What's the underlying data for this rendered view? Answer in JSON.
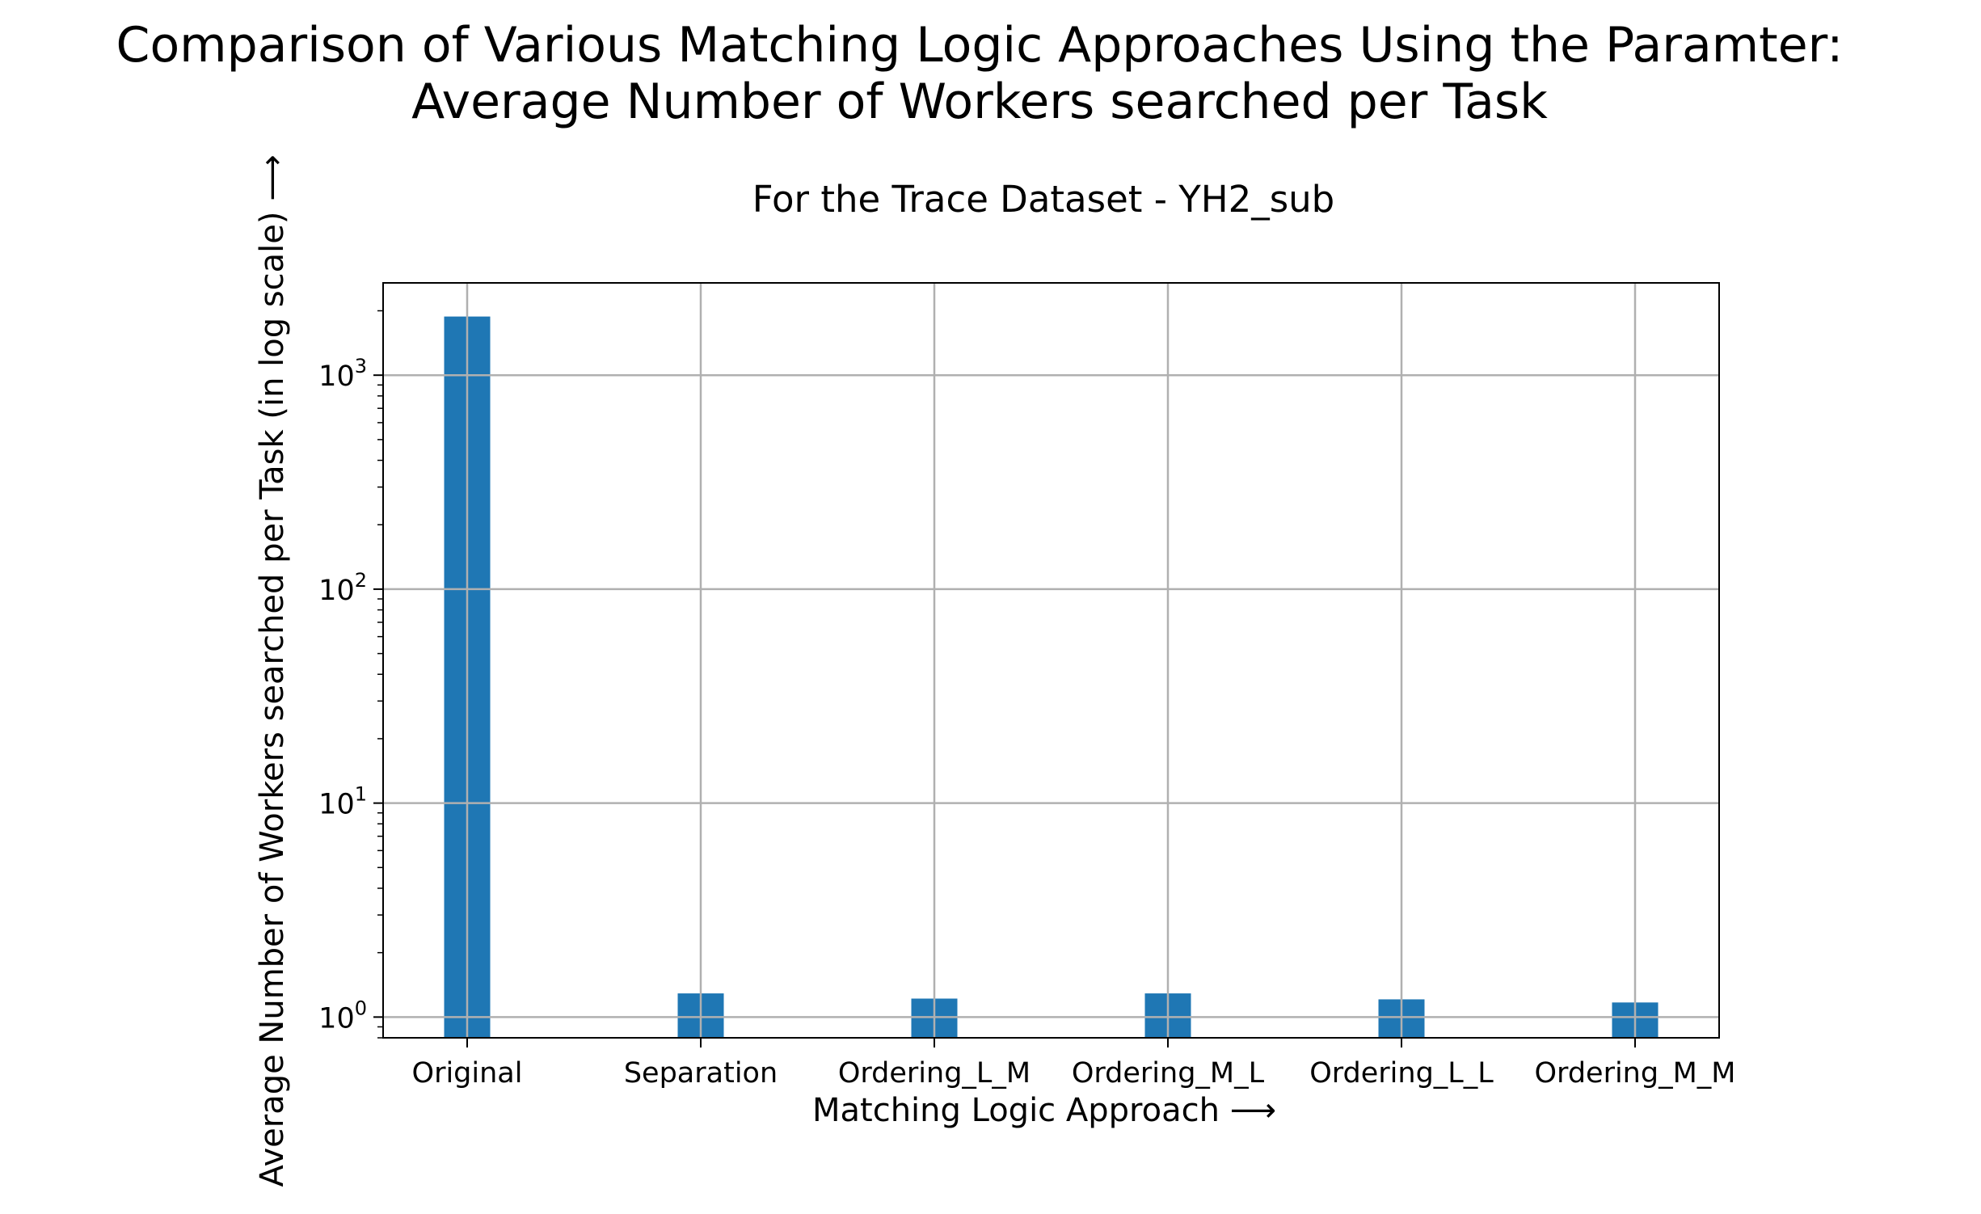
{
  "chart_data": {
    "type": "bar",
    "title_lines": [
      "Comparison of Various Matching Logic Approaches Using the Paramter:",
      "Average Number of Workers searched per Task"
    ],
    "subtitle": "For the Trace Dataset - YH2_sub",
    "xlabel": "Matching Logic Approach ⟶",
    "ylabel": "Average Number of Workers searched per Task (in log scale) ⟶",
    "categories": [
      "Original",
      "Separation",
      "Ordering_L_M",
      "Ordering_M_L",
      "Ordering_L_L",
      "Ordering_M_M"
    ],
    "values": [
      1880,
      1.29,
      1.22,
      1.29,
      1.21,
      1.17
    ],
    "y_scale": "log",
    "ylim": [
      0.8,
      2700
    ],
    "y_ticks": [
      {
        "value": 1,
        "base": "10",
        "exp": "0"
      },
      {
        "value": 10,
        "base": "10",
        "exp": "1"
      },
      {
        "value": 100,
        "base": "10",
        "exp": "2"
      },
      {
        "value": 1000,
        "base": "10",
        "exp": "3"
      }
    ],
    "grid": true,
    "bar_color": "#1f77b4",
    "grid_color": "#b0b0b0"
  }
}
